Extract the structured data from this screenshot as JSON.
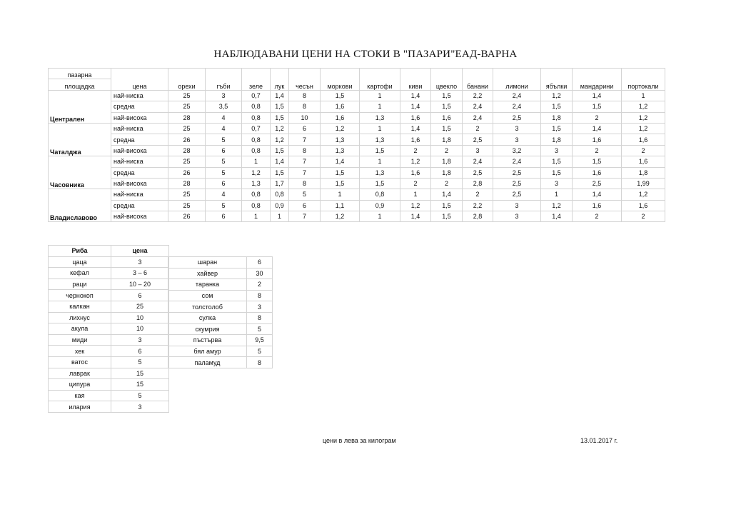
{
  "title": "НАБЛЮДАВАНИ ЦЕНИ НА СТОКИ В \"ПАЗАРИ\"ЕАД-ВАРНА",
  "main_table": {
    "header_market_line1": "пазарна",
    "header_market_line2": "площадка",
    "header_price": "цена",
    "products": [
      "орехи",
      "гъби",
      "зеле",
      "лук",
      "чесън",
      "моркови",
      "картофи",
      "киви",
      "цвекло",
      "банани",
      "лимони",
      "ябълки",
      "мандарини",
      "портокали"
    ],
    "markets": [
      {
        "name": "Централен",
        "rows": [
          {
            "level": "най-ниска",
            "values": [
              "25",
              "3",
              "0,7",
              "1,4",
              "8",
              "1,5",
              "1",
              "1,4",
              "1,5",
              "2,2",
              "2,4",
              "1,2",
              "1,4",
              "1"
            ]
          },
          {
            "level": "средна",
            "values": [
              "25",
              "3,5",
              "0,8",
              "1,5",
              "8",
              "1,6",
              "1",
              "1,4",
              "1,5",
              "2,4",
              "2,4",
              "1,5",
              "1,5",
              "1,2"
            ]
          },
          {
            "level": "най-висока",
            "values": [
              "28",
              "4",
              "0,8",
              "1,5",
              "10",
              "1,6",
              "1,3",
              "1,6",
              "1,6",
              "2,4",
              "2,5",
              "1,8",
              "2",
              "1,2"
            ]
          }
        ]
      },
      {
        "name": "Чаталджа",
        "rows": [
          {
            "level": "най-ниска",
            "values": [
              "25",
              "4",
              "0,7",
              "1,2",
              "6",
              "1,2",
              "1",
              "1,4",
              "1,5",
              "2",
              "3",
              "1,5",
              "1,4",
              "1,2"
            ]
          },
          {
            "level": "средна",
            "values": [
              "26",
              "5",
              "0,8",
              "1,2",
              "7",
              "1,3",
              "1,3",
              "1,6",
              "1,8",
              "2,5",
              "3",
              "1,8",
              "1,6",
              "1,6"
            ]
          },
          {
            "level": "най-висока",
            "values": [
              "28",
              "6",
              "0,8",
              "1,5",
              "8",
              "1,3",
              "1,5",
              "2",
              "2",
              "3",
              "3,2",
              "3",
              "2",
              "2"
            ]
          }
        ]
      },
      {
        "name": "Часовника",
        "rows": [
          {
            "level": "най-ниска",
            "values": [
              "25",
              "5",
              "1",
              "1,4",
              "7",
              "1,4",
              "1",
              "1,2",
              "1,8",
              "2,4",
              "2,4",
              "1,5",
              "1,5",
              "1,6"
            ]
          },
          {
            "level": "средна",
            "values": [
              "26",
              "5",
              "1,2",
              "1,5",
              "7",
              "1,5",
              "1,3",
              "1,6",
              "1,8",
              "2,5",
              "2,5",
              "1,5",
              "1,6",
              "1,8"
            ]
          },
          {
            "level": "най-висока",
            "values": [
              "28",
              "6",
              "1,3",
              "1,7",
              "8",
              "1,5",
              "1,5",
              "2",
              "2",
              "2,8",
              "2,5",
              "3",
              "2,5",
              "1,99"
            ]
          }
        ]
      },
      {
        "name": "Владиславово",
        "rows": [
          {
            "level": "най-ниска",
            "values": [
              "25",
              "4",
              "0,8",
              "0,8",
              "5",
              "1",
              "0,8",
              "1",
              "1,4",
              "2",
              "2,5",
              "1",
              "1,4",
              "1,2"
            ]
          },
          {
            "level": "средна",
            "values": [
              "25",
              "5",
              "0,8",
              "0,9",
              "6",
              "1,1",
              "0,9",
              "1,2",
              "1,5",
              "2,2",
              "3",
              "1,2",
              "1,6",
              "1,6"
            ]
          },
          {
            "level": "най-висока",
            "values": [
              "26",
              "6",
              "1",
              "1",
              "7",
              "1,2",
              "1",
              "1,4",
              "1,5",
              "2,8",
              "3",
              "1,4",
              "2",
              "2"
            ]
          }
        ]
      }
    ]
  },
  "fish_table": {
    "header_name": "Риба",
    "header_price": "цена",
    "left": [
      {
        "name": "цаца",
        "price": "3"
      },
      {
        "name": "кефал",
        "price": "3 – 6"
      },
      {
        "name": "раци",
        "price": "10 – 20"
      },
      {
        "name": "чернокоп",
        "price": "6"
      },
      {
        "name": "калкан",
        "price": "25"
      },
      {
        "name": "лихнус",
        "price": "10"
      },
      {
        "name": "акула",
        "price": "10"
      },
      {
        "name": "миди",
        "price": "3"
      },
      {
        "name": "хек",
        "price": "6"
      },
      {
        "name": "ватос",
        "price": "5"
      },
      {
        "name": "лаврак",
        "price": "15"
      },
      {
        "name": "ципура",
        "price": "15"
      },
      {
        "name": "кая",
        "price": "5"
      },
      {
        "name": "илария",
        "price": "3"
      }
    ],
    "right": [
      {
        "name": "шаран",
        "price": "6"
      },
      {
        "name": "хайвер",
        "price": "30"
      },
      {
        "name": "таранка",
        "price": "2"
      },
      {
        "name": "сом",
        "price": "8"
      },
      {
        "name": "толстолоб",
        "price": "3"
      },
      {
        "name": "сулка",
        "price": "8"
      },
      {
        "name": "скумрия",
        "price": "5"
      },
      {
        "name": "пъстърва",
        "price": "9,5"
      },
      {
        "name": "бял амур",
        "price": "5"
      },
      {
        "name": "паламуд",
        "price": "8"
      }
    ]
  },
  "footer": {
    "note": "цени в лева за килограм",
    "date": "13.01.2017 г."
  }
}
